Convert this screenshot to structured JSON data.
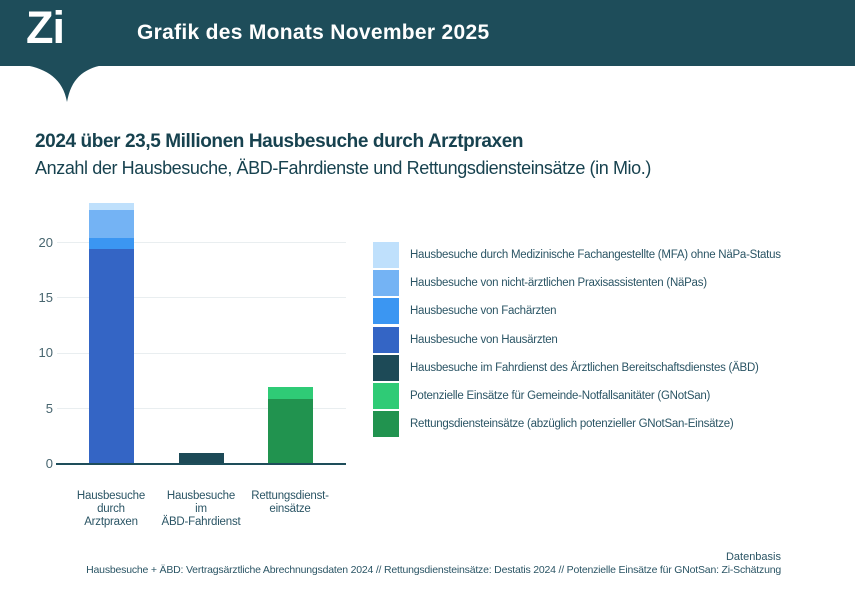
{
  "banner": {
    "logo": "Zi",
    "title": "Grafik des Monats November 2025"
  },
  "headline": "2024 über 23,5 Millionen Hausbesuche durch Arztpraxen",
  "subheadline": "Anzahl der Hausbesuche, ÄBD-Fahrdienste und Rettungsdiensteinsätze (in Mio.)",
  "footer": {
    "label": "Datenbasis",
    "sources": "Hausbesuche + ÄBD: Vertragsärztliche Abrechnungsdaten 2024 // Rettungsdiensteinsätze: Destatis 2024 // Potenzielle Einsätze für GNotSan: Zi-Schätzung"
  },
  "colors": {
    "brand_teal": "#1e4d5a",
    "text_dark": "#17424f",
    "text_mid": "#2b5565",
    "axis_text": "#47656f",
    "gridline": "#e9eef0"
  },
  "chart_data": {
    "type": "bar",
    "stacked": true,
    "title": "2024 über 23,5 Millionen Hausbesuche durch Arztpraxen",
    "subtitle": "Anzahl der Hausbesuche, ÄBD-Fahrdienste und Rettungsdiensteinsätze (in Mio.)",
    "unit": "Mio.",
    "grid": true,
    "legend_position": "right",
    "ylim": [
      0,
      24.2
    ],
    "yticks": [
      0,
      5,
      10,
      15,
      20
    ],
    "categories": [
      "Hausbesuche durch Arztpraxen",
      "Hausbesuche im ÄBD-Fahrdienst",
      "Rettungsdiensteinsätze"
    ],
    "category_label_lines": [
      [
        "Hausbesuche",
        "durch",
        "Arztpraxen"
      ],
      [
        "Hausbesuche",
        "im",
        "ÄBD-Fahrdienst"
      ],
      [
        "Rettungsdienst-",
        "einsätze"
      ]
    ],
    "totals": [
      23.6,
      1.0,
      7.0
    ],
    "series": [
      {
        "name": "Hausbesuche von Hausärzten",
        "color": "#3465c5",
        "values": [
          19.4,
          0,
          0
        ]
      },
      {
        "name": "Hausbesuche von Fachärzten",
        "color": "#3b96f2",
        "values": [
          1.0,
          0,
          0
        ]
      },
      {
        "name": "Hausbesuche von nicht-ärztlichen Praxisassistenten (NäPas)",
        "color": "#74b3f4",
        "values": [
          2.5,
          0,
          0
        ]
      },
      {
        "name": "Hausbesuche durch Medizinische Fachangestellte (MFA) ohne NäPa-Status",
        "color": "#bfe0fc",
        "values": [
          0.7,
          0,
          0
        ]
      },
      {
        "name": "Hausbesuche im Fahrdienst des Ärztlichen Bereitschaftsdienstes (ÄBD)",
        "color": "#1d4a57",
        "values": [
          0,
          1.0,
          0
        ]
      },
      {
        "name": "Rettungsdiensteinsätze (abzüglich potenzieller GNotSan-Einsätze)",
        "color": "#21934f",
        "values": [
          0,
          0,
          5.9
        ]
      },
      {
        "name": "Potenzielle Einsätze für Gemeinde-Notfallsanitäter (GNotSan)",
        "color": "#2fcb76",
        "values": [
          0,
          0,
          1.1
        ]
      }
    ],
    "legend": [
      {
        "label": "Hausbesuche durch Medizinische Fachangestellte (MFA) ohne NäPa-Status",
        "color": "#bfe0fc"
      },
      {
        "label": "Hausbesuche von nicht-ärztlichen Praxisassistenten (NäPas)",
        "color": "#74b3f4"
      },
      {
        "label": "Hausbesuche von Fachärzten",
        "color": "#3b96f2"
      },
      {
        "label": "Hausbesuche von Hausärzten",
        "color": "#3465c5"
      },
      {
        "label": "Hausbesuche im Fahrdienst des Ärztlichen Bereitschaftsdienstes (ÄBD)",
        "color": "#1d4a57"
      },
      {
        "label": "Potenzielle Einsätze für Gemeinde-Notfallsanitäter (GNotSan)",
        "color": "#2fcb76"
      },
      {
        "label": "Rettungsdiensteinsätze (abzüglich potenzieller GNotSan-Einsätze)",
        "color": "#21934f"
      }
    ]
  }
}
